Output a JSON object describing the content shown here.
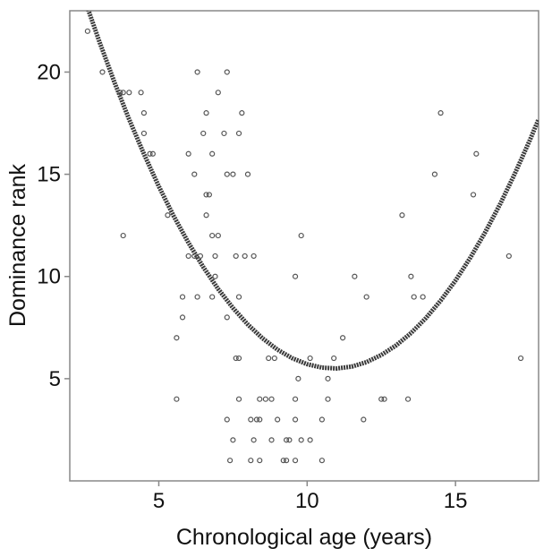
{
  "chart_data": {
    "type": "scatter",
    "xlabel": "Chronological age (years)",
    "ylabel": "Dominance rank",
    "xlim": [
      2,
      17.8
    ],
    "ylim": [
      0,
      23
    ],
    "xticks": [
      5,
      10,
      15
    ],
    "yticks": [
      5,
      10,
      15,
      20
    ],
    "color": "#555555",
    "fit_color": "#3a3a3a",
    "points": {
      "x": [
        2.6,
        3.1,
        3.7,
        3.8,
        4.0,
        3.8,
        4.4,
        4.5,
        4.5,
        4.7,
        4.8,
        5.3,
        5.6,
        5.6,
        5.8,
        5.8,
        6.0,
        6.0,
        6.2,
        6.2,
        6.3,
        6.3,
        6.4,
        6.5,
        6.6,
        6.6,
        6.6,
        6.7,
        6.8,
        6.8,
        6.8,
        6.9,
        6.9,
        7.0,
        7.0,
        7.3,
        7.2,
        7.3,
        7.3,
        7.3,
        7.5,
        7.5,
        7.4,
        7.6,
        7.6,
        7.7,
        7.7,
        7.7,
        7.7,
        7.8,
        7.9,
        8.0,
        8.1,
        8.2,
        8.1,
        8.2,
        8.3,
        8.4,
        8.4,
        8.4,
        8.6,
        8.7,
        8.8,
        8.8,
        8.9,
        9.0,
        9.2,
        9.3,
        9.3,
        9.4,
        9.6,
        9.6,
        9.6,
        9.6,
        9.7,
        9.8,
        9.8,
        10.1,
        10.1,
        10.5,
        10.5,
        10.7,
        10.7,
        10.9,
        11.2,
        11.6,
        11.9,
        12.0,
        12.5,
        12.6,
        13.2,
        13.4,
        13.5,
        13.6,
        13.9,
        14.3,
        14.5,
        15.6,
        15.7,
        16.8,
        17.2
      ],
      "y": [
        22,
        20,
        19,
        19,
        19,
        12,
        19,
        18,
        17,
        16,
        16,
        13,
        7,
        4,
        8,
        9,
        16,
        11,
        11,
        15,
        9,
        20,
        11,
        17,
        14,
        18,
        13,
        14,
        9,
        12,
        16,
        11,
        10,
        12,
        19,
        20,
        17,
        15,
        8,
        3,
        15,
        2,
        1,
        6,
        11,
        17,
        6,
        4,
        9,
        18,
        11,
        15,
        1,
        11,
        3,
        2,
        3,
        1,
        4,
        3,
        4,
        6,
        4,
        2,
        6,
        3,
        1,
        1,
        2,
        2,
        4,
        1,
        10,
        3,
        5,
        2,
        12,
        6,
        2,
        1,
        3,
        4,
        5,
        6,
        7,
        10,
        3,
        9,
        4,
        4,
        13,
        4,
        10,
        9,
        9,
        15,
        18,
        14,
        16,
        11,
        6
      ]
    },
    "fit": {
      "x": [
        2.5,
        3,
        3.5,
        4,
        4.5,
        5,
        5.5,
        6,
        6.5,
        7,
        7.5,
        8,
        8.5,
        9,
        9.5,
        10,
        10.5,
        11,
        11.5,
        12,
        12.5,
        13,
        13.5,
        14,
        14.5,
        15,
        15.5,
        16,
        16.5,
        17,
        17.5,
        17.8
      ],
      "y": [
        23.56,
        21.48,
        19.52,
        17.69,
        15.99,
        14.41,
        12.96,
        11.65,
        10.46,
        9.39,
        8.46,
        7.65,
        6.97,
        6.42,
        6.0,
        5.71,
        5.54,
        5.5,
        5.59,
        5.81,
        6.16,
        6.63,
        7.23,
        7.96,
        8.82,
        9.8,
        10.92,
        12.16,
        13.53,
        15.03,
        16.65,
        17.69
      ]
    }
  }
}
